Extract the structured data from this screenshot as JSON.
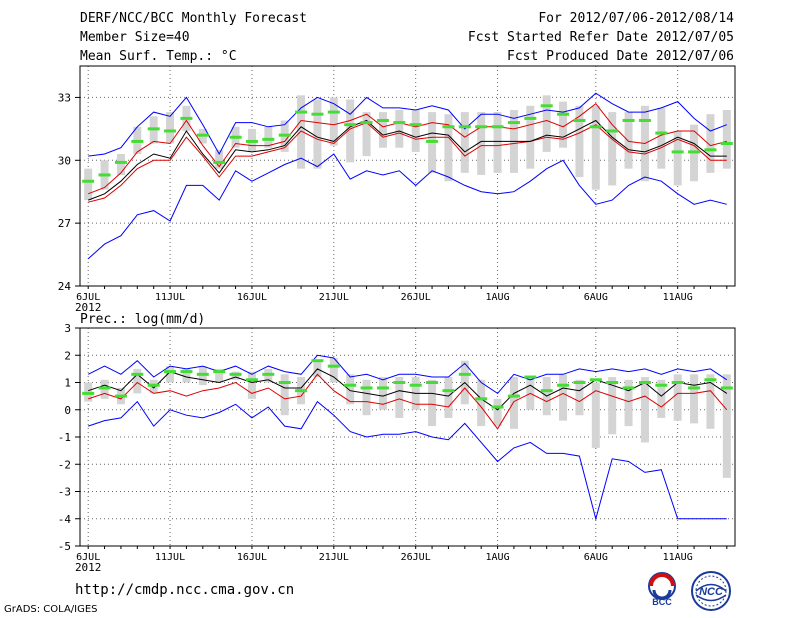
{
  "header": {
    "title": "DERF/NCC/BCC Monthly Forecast",
    "member_size": "Member Size=40",
    "variable": "Mean Surf. Temp.: °C",
    "period": "For 2012/07/06-2012/08/14",
    "started": "Fcst Started Refer Date 2012/07/05",
    "produced": "Fcst Produced Date 2012/07/06"
  },
  "footer": {
    "url": "http://cmdp.ncc.cma.gov.cn",
    "credit": "GrADS: COLA/IGES",
    "logo_bcc": "BCC",
    "logo_ncc": "NCC"
  },
  "colors": {
    "max_line": "#0000ff",
    "min_line": "#0000ff",
    "mean_line": "#000000",
    "median_line": "#dd0000",
    "obs_marker": "#44dd33",
    "spread_bar": "#d4d4d4",
    "grid": "#666666"
  },
  "chart_data": [
    {
      "type": "line",
      "title": "Mean Surf. Temp.: °C",
      "ylim": [
        24,
        34.5
      ],
      "yticks": [
        24,
        27,
        30,
        33
      ],
      "x": [
        1,
        2,
        3,
        4,
        5,
        6,
        7,
        8,
        9,
        10,
        11,
        12,
        13,
        14,
        15,
        16,
        17,
        18,
        19,
        20,
        21,
        22,
        23,
        24,
        25,
        26,
        27,
        28,
        29,
        30,
        31,
        32,
        33,
        34,
        35,
        36,
        37,
        38,
        39,
        40
      ],
      "xlim": [
        0.5,
        40.5
      ],
      "xticks": [
        1,
        6,
        11,
        16,
        21,
        26,
        27,
        32,
        37
      ],
      "xtick_positions": [
        1,
        6,
        11,
        16,
        21,
        26,
        32,
        37
      ],
      "xtick_labels": [
        "6JUL",
        "11JUL",
        "16JUL",
        "21JUL",
        "26JUL",
        "1AUG",
        "6AUG",
        "11AUG"
      ],
      "year_label": "2012",
      "grid": true,
      "series": [
        {
          "name": "max",
          "values": [
            30.2,
            30.3,
            30.6,
            31.6,
            32.3,
            32.1,
            33.0,
            31.7,
            30.3,
            31.8,
            31.8,
            31.6,
            31.7,
            32.5,
            33.0,
            32.7,
            32.2,
            33.0,
            32.5,
            32.5,
            32.4,
            32.6,
            32.4,
            31.5,
            32.2,
            32.2,
            32.0,
            32.2,
            32.4,
            32.3,
            32.5,
            33.2,
            32.7,
            32.3,
            32.3,
            32.5,
            32.8,
            32.0,
            31.4,
            31.7
          ]
        },
        {
          "name": "median",
          "values": [
            28.4,
            28.7,
            29.4,
            30.4,
            30.9,
            30.8,
            31.9,
            30.7,
            29.7,
            30.8,
            30.7,
            30.7,
            30.9,
            31.9,
            31.8,
            31.7,
            31.9,
            32.2,
            31.6,
            31.8,
            31.6,
            31.8,
            31.7,
            31.1,
            31.6,
            31.6,
            31.5,
            31.7,
            31.9,
            31.6,
            32.1,
            32.7,
            31.7,
            30.9,
            30.8,
            31.2,
            31.4,
            31.4,
            30.7,
            30.9
          ]
        },
        {
          "name": "mean",
          "values": [
            28.1,
            28.4,
            29.0,
            29.8,
            30.3,
            30.1,
            31.4,
            30.3,
            29.4,
            30.5,
            30.4,
            30.5,
            30.7,
            31.6,
            31.1,
            30.9,
            31.6,
            31.9,
            31.2,
            31.4,
            31.1,
            31.3,
            31.2,
            30.4,
            30.9,
            30.9,
            30.9,
            30.9,
            31.2,
            31.1,
            31.5,
            31.9,
            31.1,
            30.5,
            30.4,
            30.7,
            31.1,
            30.8,
            30.2,
            30.2
          ]
        },
        {
          "name": "min",
          "values": [
            28.0,
            28.2,
            28.8,
            29.6,
            30.0,
            30.0,
            31.1,
            30.2,
            29.2,
            30.2,
            30.2,
            30.4,
            30.6,
            31.4,
            31.0,
            30.8,
            31.5,
            31.8,
            31.1,
            31.3,
            31.0,
            31.1,
            31.1,
            30.2,
            30.7,
            30.7,
            30.8,
            30.9,
            31.1,
            31.0,
            31.3,
            31.7,
            31.0,
            30.4,
            30.3,
            30.6,
            31.0,
            30.7,
            30.0,
            30.0
          ]
        },
        {
          "name": "lowest",
          "values": [
            25.3,
            26.0,
            26.4,
            27.4,
            27.6,
            27.1,
            28.8,
            28.8,
            28.1,
            29.5,
            29.0,
            29.4,
            29.8,
            30.1,
            29.7,
            30.3,
            29.1,
            29.5,
            29.3,
            29.5,
            28.8,
            29.5,
            29.2,
            28.8,
            28.5,
            28.4,
            28.5,
            29.0,
            29.6,
            30.0,
            28.8,
            27.9,
            28.1,
            28.8,
            29.2,
            29.0,
            28.4,
            27.9,
            28.1,
            27.9
          ]
        },
        {
          "name": "observed",
          "values": [
            29.0,
            29.3,
            29.9,
            30.9,
            31.5,
            31.4,
            32.0,
            31.2,
            29.9,
            31.1,
            30.9,
            31.0,
            31.2,
            32.3,
            32.2,
            32.3,
            31.7,
            31.8,
            31.9,
            31.8,
            31.7,
            30.9,
            31.6,
            31.6,
            31.6,
            31.6,
            31.8,
            32.0,
            32.6,
            32.2,
            31.9,
            31.6,
            31.4,
            31.9,
            31.9,
            31.3,
            30.4,
            30.4,
            30.5,
            30.8
          ]
        },
        {
          "name": "spread_lo",
          "values": [
            28.1,
            28.6,
            29.3,
            30.3,
            30.8,
            30.8,
            31.4,
            30.8,
            29.6,
            30.6,
            30.4,
            30.6,
            30.4,
            29.6,
            29.6,
            30.7,
            29.9,
            30.2,
            30.6,
            30.6,
            30.4,
            29.4,
            29.0,
            29.4,
            29.3,
            29.4,
            29.4,
            29.6,
            30.4,
            30.6,
            29.2,
            28.6,
            28.8,
            29.6,
            29.0,
            29.6,
            28.8,
            29.0,
            29.4,
            29.6
          ]
        },
        {
          "name": "spread_hi",
          "values": [
            29.6,
            30.0,
            30.3,
            31.6,
            32.1,
            32.3,
            32.6,
            31.5,
            30.5,
            31.6,
            31.5,
            31.6,
            31.9,
            33.1,
            32.9,
            33.0,
            32.9,
            32.3,
            32.3,
            32.4,
            32.4,
            32.3,
            32.2,
            32.3,
            32.3,
            32.3,
            32.4,
            32.6,
            33.1,
            32.8,
            32.6,
            32.6,
            32.3,
            32.3,
            32.6,
            32.5,
            31.4,
            31.7,
            32.2,
            32.4
          ]
        }
      ]
    },
    {
      "type": "line",
      "title": "Prec.: log(mm/d)",
      "ylim": [
        -5,
        3
      ],
      "yticks": [
        -5,
        -4,
        -3,
        -2,
        -1,
        0,
        1,
        2,
        3
      ],
      "x": [
        1,
        2,
        3,
        4,
        5,
        6,
        7,
        8,
        9,
        10,
        11,
        12,
        13,
        14,
        15,
        16,
        17,
        18,
        19,
        20,
        21,
        22,
        23,
        24,
        25,
        26,
        27,
        28,
        29,
        30,
        31,
        32,
        33,
        34,
        35,
        36,
        37,
        38,
        39,
        40
      ],
      "xlim": [
        0.5,
        40.5
      ],
      "xtick_positions": [
        1,
        6,
        11,
        16,
        21,
        26,
        32,
        37
      ],
      "xtick_labels": [
        "6JUL",
        "11JUL",
        "16JUL",
        "21JUL",
        "26JUL",
        "1AUG",
        "6AUG",
        "11AUG"
      ],
      "year_label": "2012",
      "grid": true,
      "series": [
        {
          "name": "max",
          "values": [
            1.3,
            1.6,
            1.3,
            1.8,
            1.2,
            1.6,
            1.5,
            1.6,
            1.4,
            1.6,
            1.3,
            1.6,
            1.4,
            1.3,
            2.0,
            1.9,
            1.2,
            1.3,
            1.1,
            1.3,
            1.3,
            1.2,
            1.2,
            1.7,
            1.0,
            0.6,
            1.3,
            1.1,
            1.3,
            1.3,
            1.5,
            1.4,
            1.5,
            1.4,
            1.5,
            1.3,
            1.5,
            1.4,
            1.5,
            1.1
          ]
        },
        {
          "name": "mean",
          "values": [
            0.7,
            0.9,
            0.7,
            1.3,
            0.8,
            1.4,
            1.2,
            1.1,
            1.0,
            1.2,
            1.0,
            1.1,
            0.8,
            0.8,
            1.5,
            1.2,
            0.7,
            0.6,
            0.5,
            0.7,
            0.6,
            0.6,
            0.5,
            1.0,
            0.4,
            0.0,
            0.6,
            0.9,
            0.5,
            0.8,
            0.7,
            1.1,
            0.9,
            0.7,
            1.0,
            0.5,
            1.0,
            0.9,
            1.0,
            0.6
          ]
        },
        {
          "name": "median",
          "values": [
            0.4,
            0.6,
            0.4,
            1.0,
            0.6,
            0.7,
            0.5,
            0.7,
            0.8,
            1.0,
            0.6,
            0.8,
            0.4,
            0.5,
            1.3,
            0.7,
            0.3,
            0.3,
            0.2,
            0.4,
            0.2,
            0.2,
            0.1,
            0.8,
            0.1,
            -0.7,
            0.3,
            0.6,
            0.3,
            0.6,
            0.3,
            0.7,
            0.5,
            0.3,
            0.5,
            0.1,
            0.6,
            0.6,
            0.7,
            0.0
          ]
        },
        {
          "name": "lowest",
          "values": [
            -0.6,
            -0.4,
            -0.3,
            0.3,
            -0.6,
            0.0,
            -0.2,
            -0.3,
            -0.1,
            0.2,
            -0.3,
            0.1,
            -0.6,
            -0.7,
            0.3,
            -0.2,
            -0.8,
            -1.0,
            -0.9,
            -0.9,
            -0.8,
            -1.0,
            -1.1,
            -0.5,
            -1.2,
            -1.9,
            -1.4,
            -1.2,
            -1.6,
            -1.6,
            -1.7,
            -4.0,
            -1.8,
            -1.9,
            -2.3,
            -2.2,
            -4.0,
            -4.0,
            -4.0,
            -4.0
          ]
        },
        {
          "name": "observed",
          "values": [
            0.6,
            0.8,
            0.5,
            1.3,
            0.9,
            1.4,
            1.4,
            1.3,
            1.4,
            1.3,
            1.1,
            1.3,
            1.0,
            0.7,
            1.8,
            1.6,
            0.9,
            0.8,
            0.8,
            1.0,
            0.9,
            1.0,
            0.7,
            1.3,
            0.4,
            0.1,
            0.5,
            1.2,
            0.7,
            0.9,
            1.0,
            1.1,
            1.0,
            0.8,
            1.0,
            0.9,
            1.0,
            0.8,
            1.1,
            0.8
          ]
        },
        {
          "name": "spread_lo",
          "values": [
            0.3,
            0.4,
            0.2,
            0.6,
            0.6,
            1.0,
            1.0,
            0.9,
            1.0,
            1.1,
            0.4,
            1.0,
            -0.2,
            0.2,
            1.2,
            1.0,
            0.2,
            -0.2,
            0.0,
            -0.3,
            0.0,
            -0.6,
            -0.3,
            0.2,
            -0.6,
            -0.6,
            -0.7,
            0.0,
            -0.2,
            -0.4,
            -0.2,
            -1.4,
            -0.9,
            -0.6,
            -1.2,
            -0.3,
            -0.4,
            -0.5,
            -0.7,
            -2.5
          ]
        },
        {
          "name": "spread_hi",
          "values": [
            1.0,
            1.1,
            0.8,
            1.5,
            1.1,
            1.6,
            1.5,
            1.6,
            1.5,
            1.4,
            1.4,
            1.5,
            1.3,
            1.2,
            1.8,
            1.9,
            1.3,
            1.1,
            1.2,
            1.2,
            1.2,
            1.1,
            1.2,
            1.8,
            1.1,
            0.4,
            1.2,
            1.2,
            1.2,
            1.3,
            1.1,
            1.0,
            1.2,
            1.1,
            1.2,
            1.1,
            1.3,
            1.3,
            1.3,
            1.3
          ]
        }
      ]
    }
  ]
}
